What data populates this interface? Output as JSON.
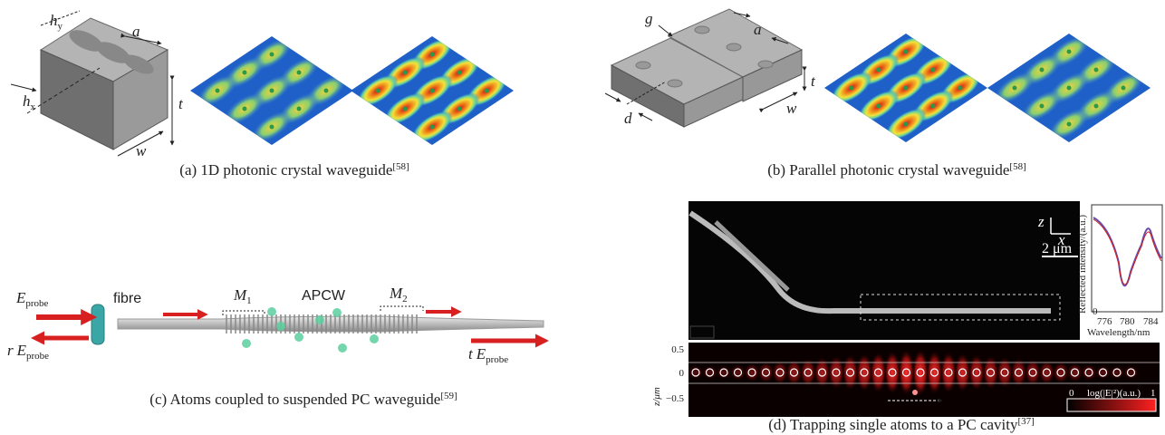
{
  "panel_a": {
    "caption": "(a) 1D photonic crystal waveguide",
    "ref": "[58]",
    "labels": {
      "hy": {
        "main": "h",
        "sub": "y"
      },
      "a": "a",
      "t": "t",
      "w": "w",
      "hx": {
        "main": "h",
        "sub": "x"
      }
    }
  },
  "panel_b": {
    "caption": "(b) Parallel photonic crystal waveguide",
    "ref": "[58]",
    "labels": {
      "g": "g",
      "a": "a",
      "t": "t",
      "w": "w",
      "d": "d"
    }
  },
  "panel_c": {
    "caption": "(c) Atoms coupled to suspended PC waveguide",
    "ref": "[59]",
    "labels": {
      "e_probe": {
        "main": "E",
        "sub": "probe"
      },
      "fibre": "fibre",
      "m1": {
        "main": "M",
        "sub": "1"
      },
      "apcw": "APCW",
      "m2": {
        "main": "M",
        "sub": "2"
      },
      "r_probe": {
        "prefix": "r",
        "main": "E",
        "sub": "probe"
      },
      "t_probe": {
        "prefix": "t",
        "main": "E",
        "sub": "probe"
      }
    }
  },
  "panel_d": {
    "caption": "(d) Trapping single atoms to a PC cavity",
    "ref": "[37]",
    "axes": {
      "z": "z",
      "x": "x"
    },
    "scale_bar": "2 μm",
    "spectrum": {
      "ylabel": "Reflected intensity/(a.u.)",
      "y_tick": "0",
      "xticks": [
        "776",
        "780",
        "784"
      ],
      "xlabel": "Wavelength/nm"
    },
    "field": {
      "ylabel": "z/μm",
      "yticks": [
        "0.5",
        "0",
        "−0.5"
      ],
      "colorbar": {
        "min": "0",
        "label": "log(|E|²)(a.u.)",
        "max": "1"
      }
    }
  }
}
